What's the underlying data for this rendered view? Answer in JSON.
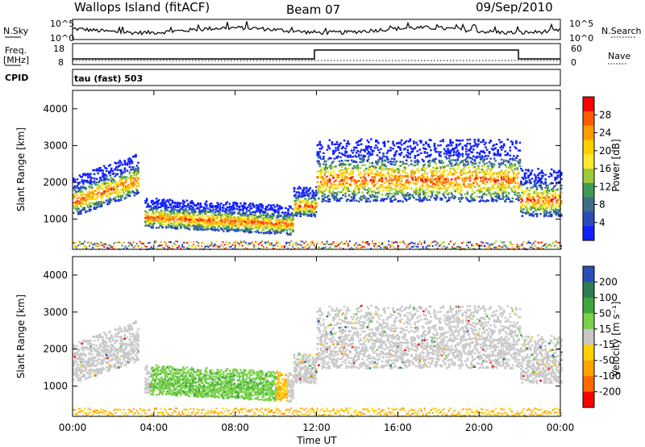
{
  "header": {
    "station": "Wallops Island (fitACF)",
    "beam": "Beam 07",
    "date": "09/Sep/2010"
  },
  "panels": {
    "nsky_label": "N.Sky",
    "nsearch_label": "N.Search",
    "nsky_ticks": [
      "10^5",
      "10^0"
    ],
    "nsearch_ticks": [
      "10^5",
      "10^0"
    ],
    "freq_label_1": "Freq.",
    "freq_label_2": "[MHz]",
    "freq_ticks": [
      "18",
      "8"
    ],
    "nave_label": "Nave",
    "nave_ticks": [
      "60",
      "0"
    ],
    "cpid_label": "CPID",
    "cpid_value": "tau (fast) 503"
  },
  "colorbars": {
    "power": {
      "title": "Power [dB]",
      "ticks": [
        "28",
        "24",
        "20",
        "16",
        "12",
        "8",
        "4"
      ],
      "colors": [
        "#ff0000",
        "#ff5a00",
        "#ff9a00",
        "#ffd000",
        "#ffe830",
        "#9ccc3c",
        "#3f9a52",
        "#3e6e8a",
        "#2a4db8",
        "#1020ff"
      ]
    },
    "velocity": {
      "title": "Velocity [m s⁻¹]",
      "ticks": [
        "200",
        "100",
        "50",
        "15",
        "-15",
        "-50",
        "-100",
        "-200"
      ],
      "colors": [
        "#2a4db8",
        "#2f7a52",
        "#3ea63a",
        "#79d24a",
        "#c8c8c8",
        "#ffd000",
        "#ffa400",
        "#ff6a00",
        "#ff0000"
      ]
    }
  },
  "chart_data": [
    {
      "type": "heatmap",
      "title": "Power",
      "ylabel": "Slant Range [km]",
      "xlabel": "",
      "x_range_hours": [
        0,
        24
      ],
      "ylim": [
        180,
        4500
      ],
      "yticks": [
        "4000",
        "3000",
        "2000",
        "1000"
      ],
      "colorbar": "power",
      "echo_bands": [
        {
          "t_start": 0,
          "t_end": 3.2,
          "range_km": [
            1100,
            2200
          ]
        },
        {
          "t_start": 3.5,
          "t_end": 10.8,
          "range_km": [
            800,
            1600
          ]
        },
        {
          "t_start": 10.5,
          "t_end": 12,
          "range_km": [
            1100,
            1900
          ]
        },
        {
          "t_start": 12,
          "t_end": 22,
          "range_km": [
            1500,
            3200
          ]
        },
        {
          "t_start": 22,
          "t_end": 24,
          "range_km": [
            1100,
            2400
          ]
        }
      ]
    },
    {
      "type": "heatmap",
      "title": "Velocity",
      "ylabel": "Slant Range [km]",
      "xlabel": "Time UT",
      "x_range_hours": [
        0,
        24
      ],
      "ylim": [
        180,
        4500
      ],
      "xticks": [
        "00:00",
        "04:00",
        "08:00",
        "12:00",
        "16:00",
        "20:00",
        "00:00"
      ],
      "yticks": [
        "4000",
        "3000",
        "2000",
        "1000"
      ],
      "colorbar": "velocity"
    }
  ]
}
